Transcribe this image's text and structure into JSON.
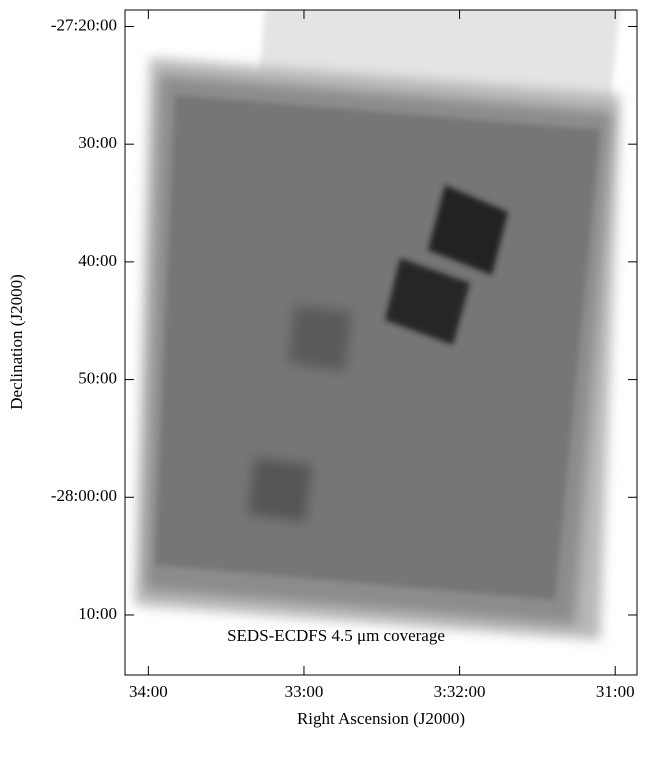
{
  "chart_data": {
    "type": "image",
    "annotation": "SEDS-ECDFS 4.5 μm coverage",
    "xlabel": "Right Ascension (J2000)",
    "ylabel": "Declination (J2000)",
    "xlim": [
      34.15,
      30.86
    ],
    "ylim": [
      -1695.1,
      -1638.6
    ],
    "xticks": [
      {
        "value": 34,
        "label": "34:00"
      },
      {
        "value": 33,
        "label": "33:00"
      },
      {
        "value": 32,
        "label": "3:32:00"
      },
      {
        "value": 31,
        "label": "31:00"
      }
    ],
    "yticks": [
      {
        "value": -1640,
        "label": "-27:20:00"
      },
      {
        "value": -1650,
        "label": "30:00"
      },
      {
        "value": -1660,
        "label": "40:00"
      },
      {
        "value": -1670,
        "label": "50:00"
      },
      {
        "value": -1680,
        "label": "-28:00:00"
      },
      {
        "value": -1690,
        "label": "10:00"
      }
    ]
  }
}
